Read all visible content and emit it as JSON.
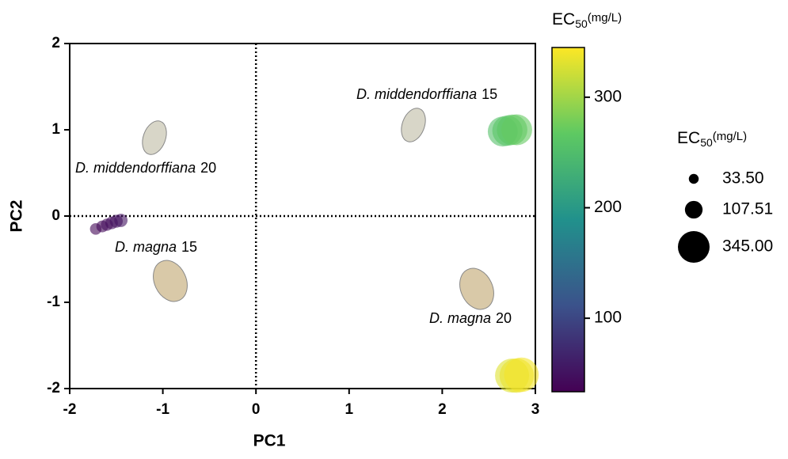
{
  "chart_data": {
    "type": "scatter",
    "xlabel": "PC1",
    "ylabel": "PC2",
    "x": [
      -1.72,
      -1.65,
      -1.6,
      -1.55,
      -1.5,
      -1.45,
      2.65,
      2.7,
      2.75,
      2.8,
      2.75,
      2.8,
      2.85
    ],
    "y": [
      -0.15,
      -0.12,
      -0.1,
      -0.08,
      -0.06,
      -0.05,
      0.98,
      0.99,
      1.0,
      1.0,
      -1.85,
      -1.85,
      -1.84
    ],
    "ec50": [
      38,
      40,
      42,
      45,
      48,
      50,
      255,
      260,
      265,
      270,
      330,
      335,
      340
    ],
    "xlim": [
      -2,
      3
    ],
    "xticks": [
      -2,
      -1,
      0,
      1,
      2,
      3
    ],
    "ylim": [
      -2,
      2
    ],
    "yticks": [
      -2,
      -1,
      0,
      1,
      2
    ],
    "zero_lines": true,
    "colormap": "viridis",
    "clim": [
      33.5,
      345
    ],
    "cticks": [
      100,
      200,
      300
    ],
    "colorbar_title": {
      "main": "EC",
      "sub": "50",
      "unit": "(mg/L)"
    },
    "size_legend": {
      "title": {
        "main": "EC",
        "sub": "50",
        "unit": "(mg/L)"
      },
      "values": [
        {
          "value": 33.5,
          "label": "33.50"
        },
        {
          "value": 107.51,
          "label": "107.51"
        },
        {
          "value": 345,
          "label": "345.00"
        }
      ]
    },
    "annotations": [
      {
        "species": "D. middendorffiana",
        "number": "20"
      },
      {
        "species": "D. middendorffiana",
        "number": "15"
      },
      {
        "species": "D. magna",
        "number": "15"
      },
      {
        "species": "D. magna",
        "number": "20"
      }
    ]
  }
}
